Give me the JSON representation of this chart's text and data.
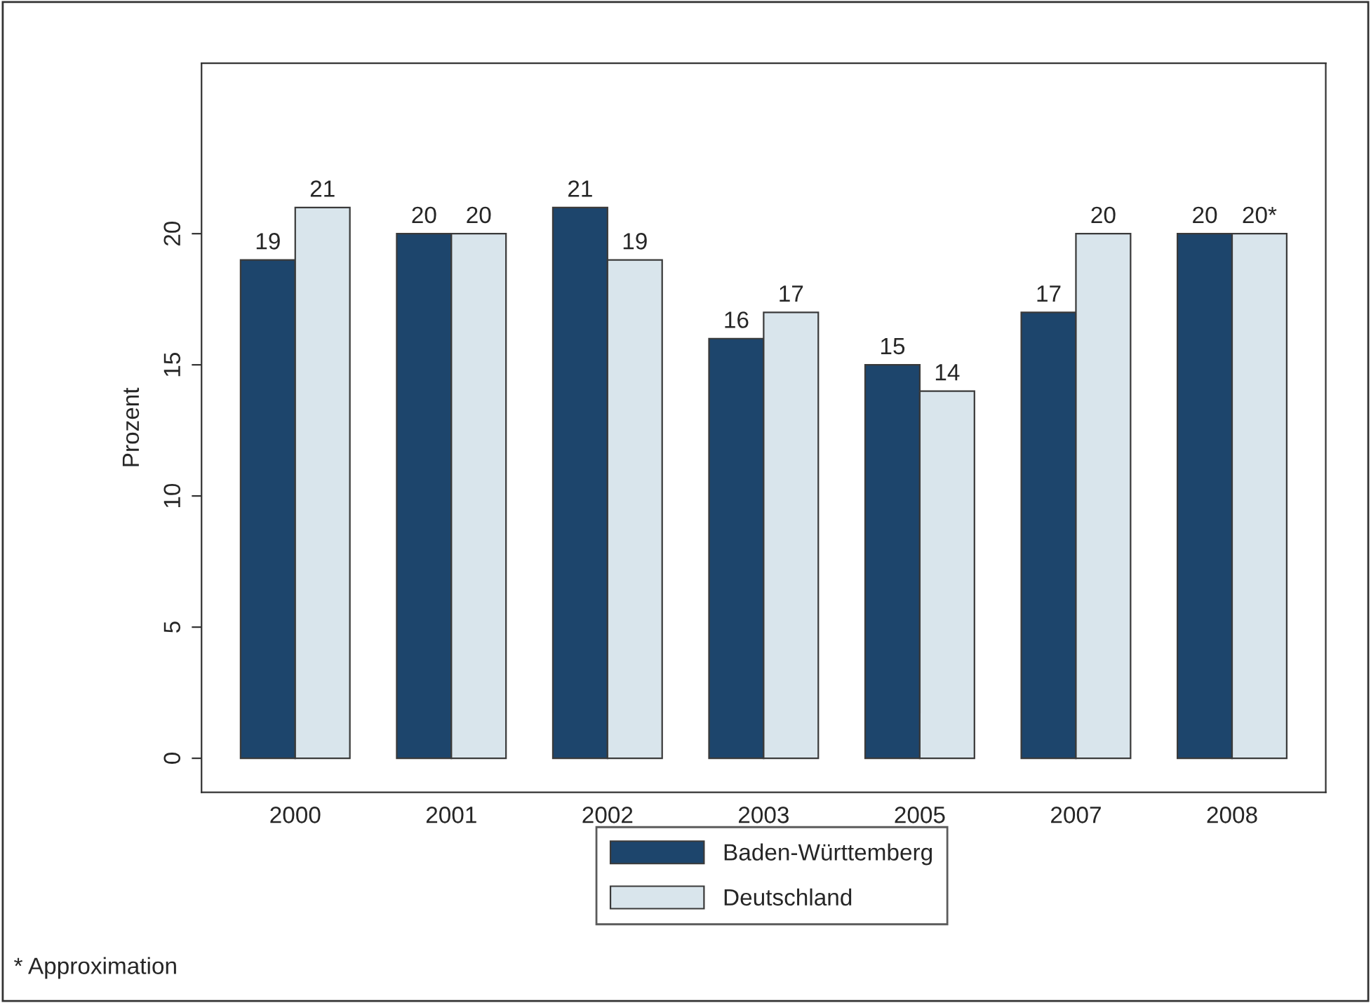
{
  "chart_data": {
    "type": "bar",
    "ylabel": "Prozent",
    "categories": [
      "2000",
      "2001",
      "2002",
      "2003",
      "2005",
      "2007",
      "2008"
    ],
    "series": [
      {
        "name": "Baden-Württemberg",
        "color": "#1d456c",
        "values": [
          19,
          20,
          21,
          16,
          15,
          17,
          20
        ],
        "value_labels": [
          "19",
          "20",
          "21",
          "16",
          "15",
          "17",
          "20"
        ]
      },
      {
        "name": "Deutschland",
        "color": "#d9e5ec",
        "values": [
          21,
          20,
          19,
          17,
          14,
          20,
          20
        ],
        "value_labels": [
          "21",
          "20",
          "19",
          "17",
          "14",
          "20",
          "20*"
        ]
      }
    ],
    "ylim": [
      -1.3,
      26.5
    ],
    "yticks": [
      0,
      5,
      10,
      15,
      20
    ],
    "grid": false,
    "legend": "bottom",
    "annotations": [
      "* Approximation"
    ]
  }
}
